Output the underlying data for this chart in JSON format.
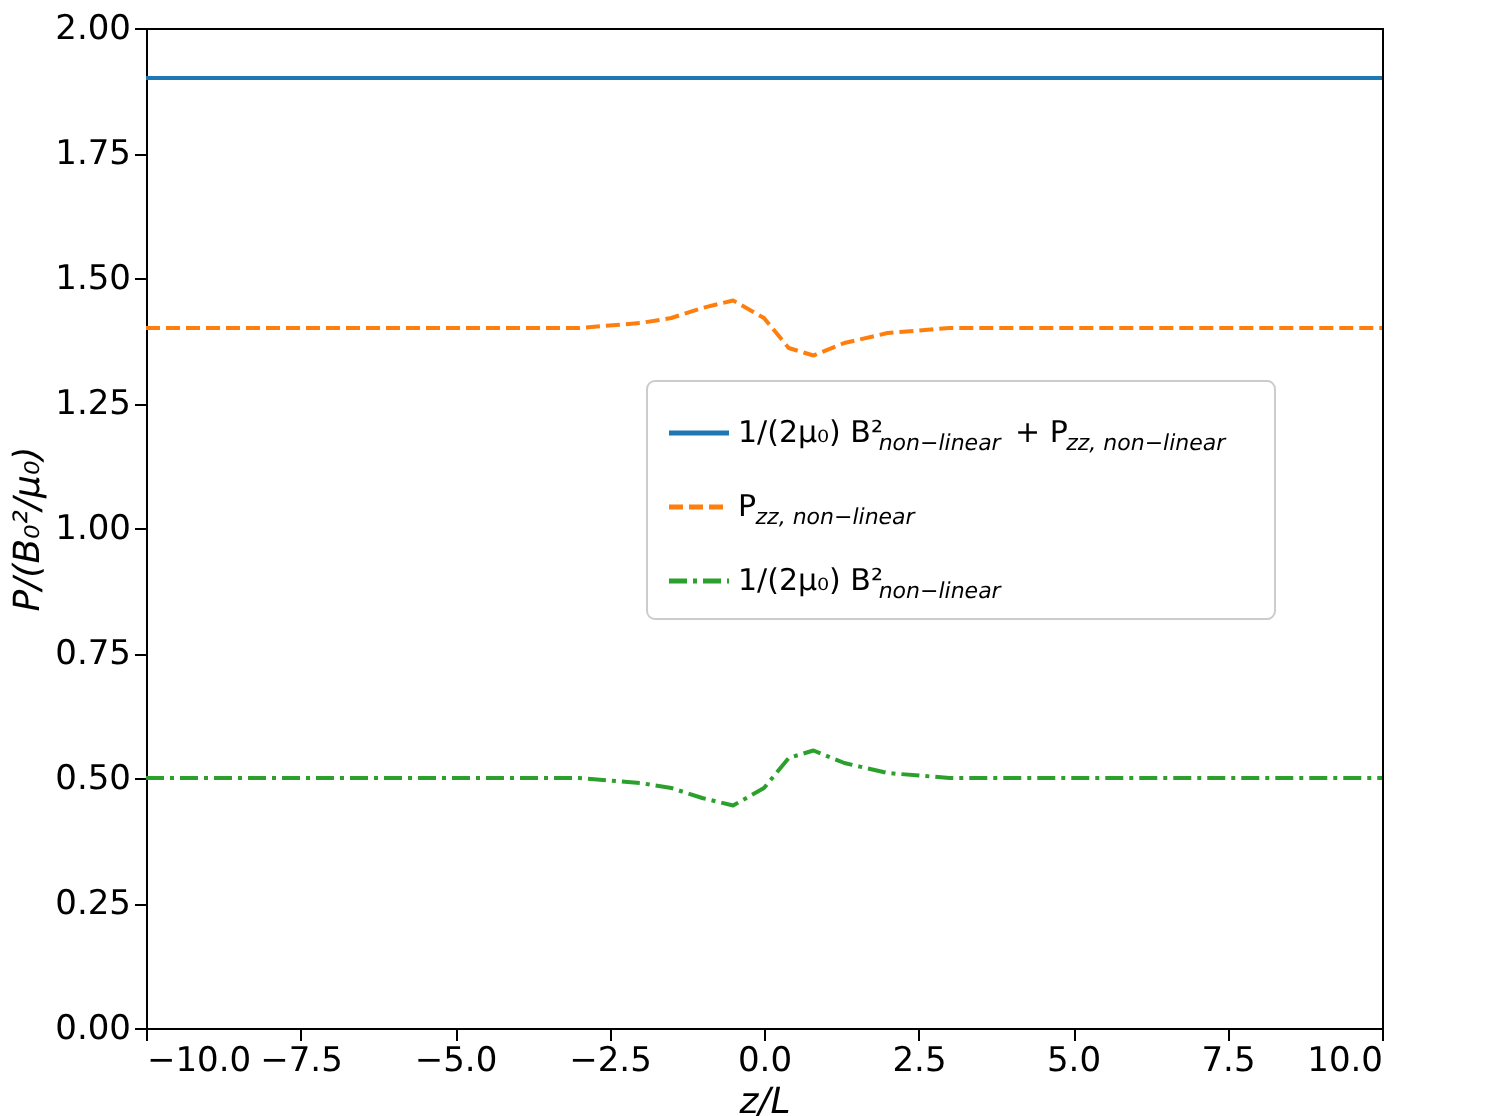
{
  "chart_data": {
    "type": "line",
    "xlabel": "z/L",
    "ylabel": "P/(B₀²/μ₀)",
    "xlim": [
      -10,
      10
    ],
    "xticks": [
      {
        "value": -10,
        "label": "−10.0"
      },
      {
        "value": -7.5,
        "label": "−7.5"
      },
      {
        "value": -5,
        "label": "−5.0"
      },
      {
        "value": -2.5,
        "label": "−2.5"
      },
      {
        "value": 0,
        "label": "0.0"
      },
      {
        "value": 2.5,
        "label": "2.5"
      },
      {
        "value": 5,
        "label": "5.0"
      },
      {
        "value": 7.5,
        "label": "7.5"
      },
      {
        "value": 10,
        "label": "10.0"
      }
    ],
    "ylim": [
      0,
      2
    ],
    "yticks": [
      {
        "value": 0,
        "label": "0.00"
      },
      {
        "value": 0.25,
        "label": "0.25"
      },
      {
        "value": 0.5,
        "label": "0.50"
      },
      {
        "value": 0.75,
        "label": "0.75"
      },
      {
        "value": 1,
        "label": "1.00"
      },
      {
        "value": 1.25,
        "label": "1.25"
      },
      {
        "value": 1.5,
        "label": "1.50"
      },
      {
        "value": 1.75,
        "label": "1.75"
      },
      {
        "value": 2,
        "label": "2.00"
      }
    ],
    "grid": false,
    "legend": "right",
    "marker": "none",
    "series": [
      {
        "name": "1/(2μ₀) B²$_{non−linear}$ + P$_{zz, non−linear}$",
        "color": "#1f77b4",
        "line_style": "solid",
        "x": [
          -10,
          10
        ],
        "values": [
          1.9,
          1.9
        ]
      },
      {
        "name": "P$_{zz, non−linear}$",
        "color": "#ff7f0e",
        "line_style": "dashed",
        "x": [
          -10,
          -3,
          -2,
          -1.5,
          -1,
          -0.5,
          0,
          0.4,
          0.8,
          1.3,
          2,
          3,
          10
        ],
        "values": [
          1.4,
          1.4,
          1.41,
          1.42,
          1.44,
          1.455,
          1.42,
          1.36,
          1.345,
          1.37,
          1.39,
          1.4,
          1.4
        ]
      },
      {
        "name": "1/(2μ₀) B²$_{non−linear}$",
        "color": "#2ca02c",
        "line_style": "dashdot",
        "x": [
          -10,
          -3,
          -2,
          -1.5,
          -1,
          -0.5,
          0,
          0.4,
          0.8,
          1.3,
          2,
          3,
          10
        ],
        "values": [
          0.5,
          0.5,
          0.49,
          0.48,
          0.46,
          0.445,
          0.48,
          0.54,
          0.555,
          0.53,
          0.51,
          0.5,
          0.5
        ]
      }
    ]
  }
}
